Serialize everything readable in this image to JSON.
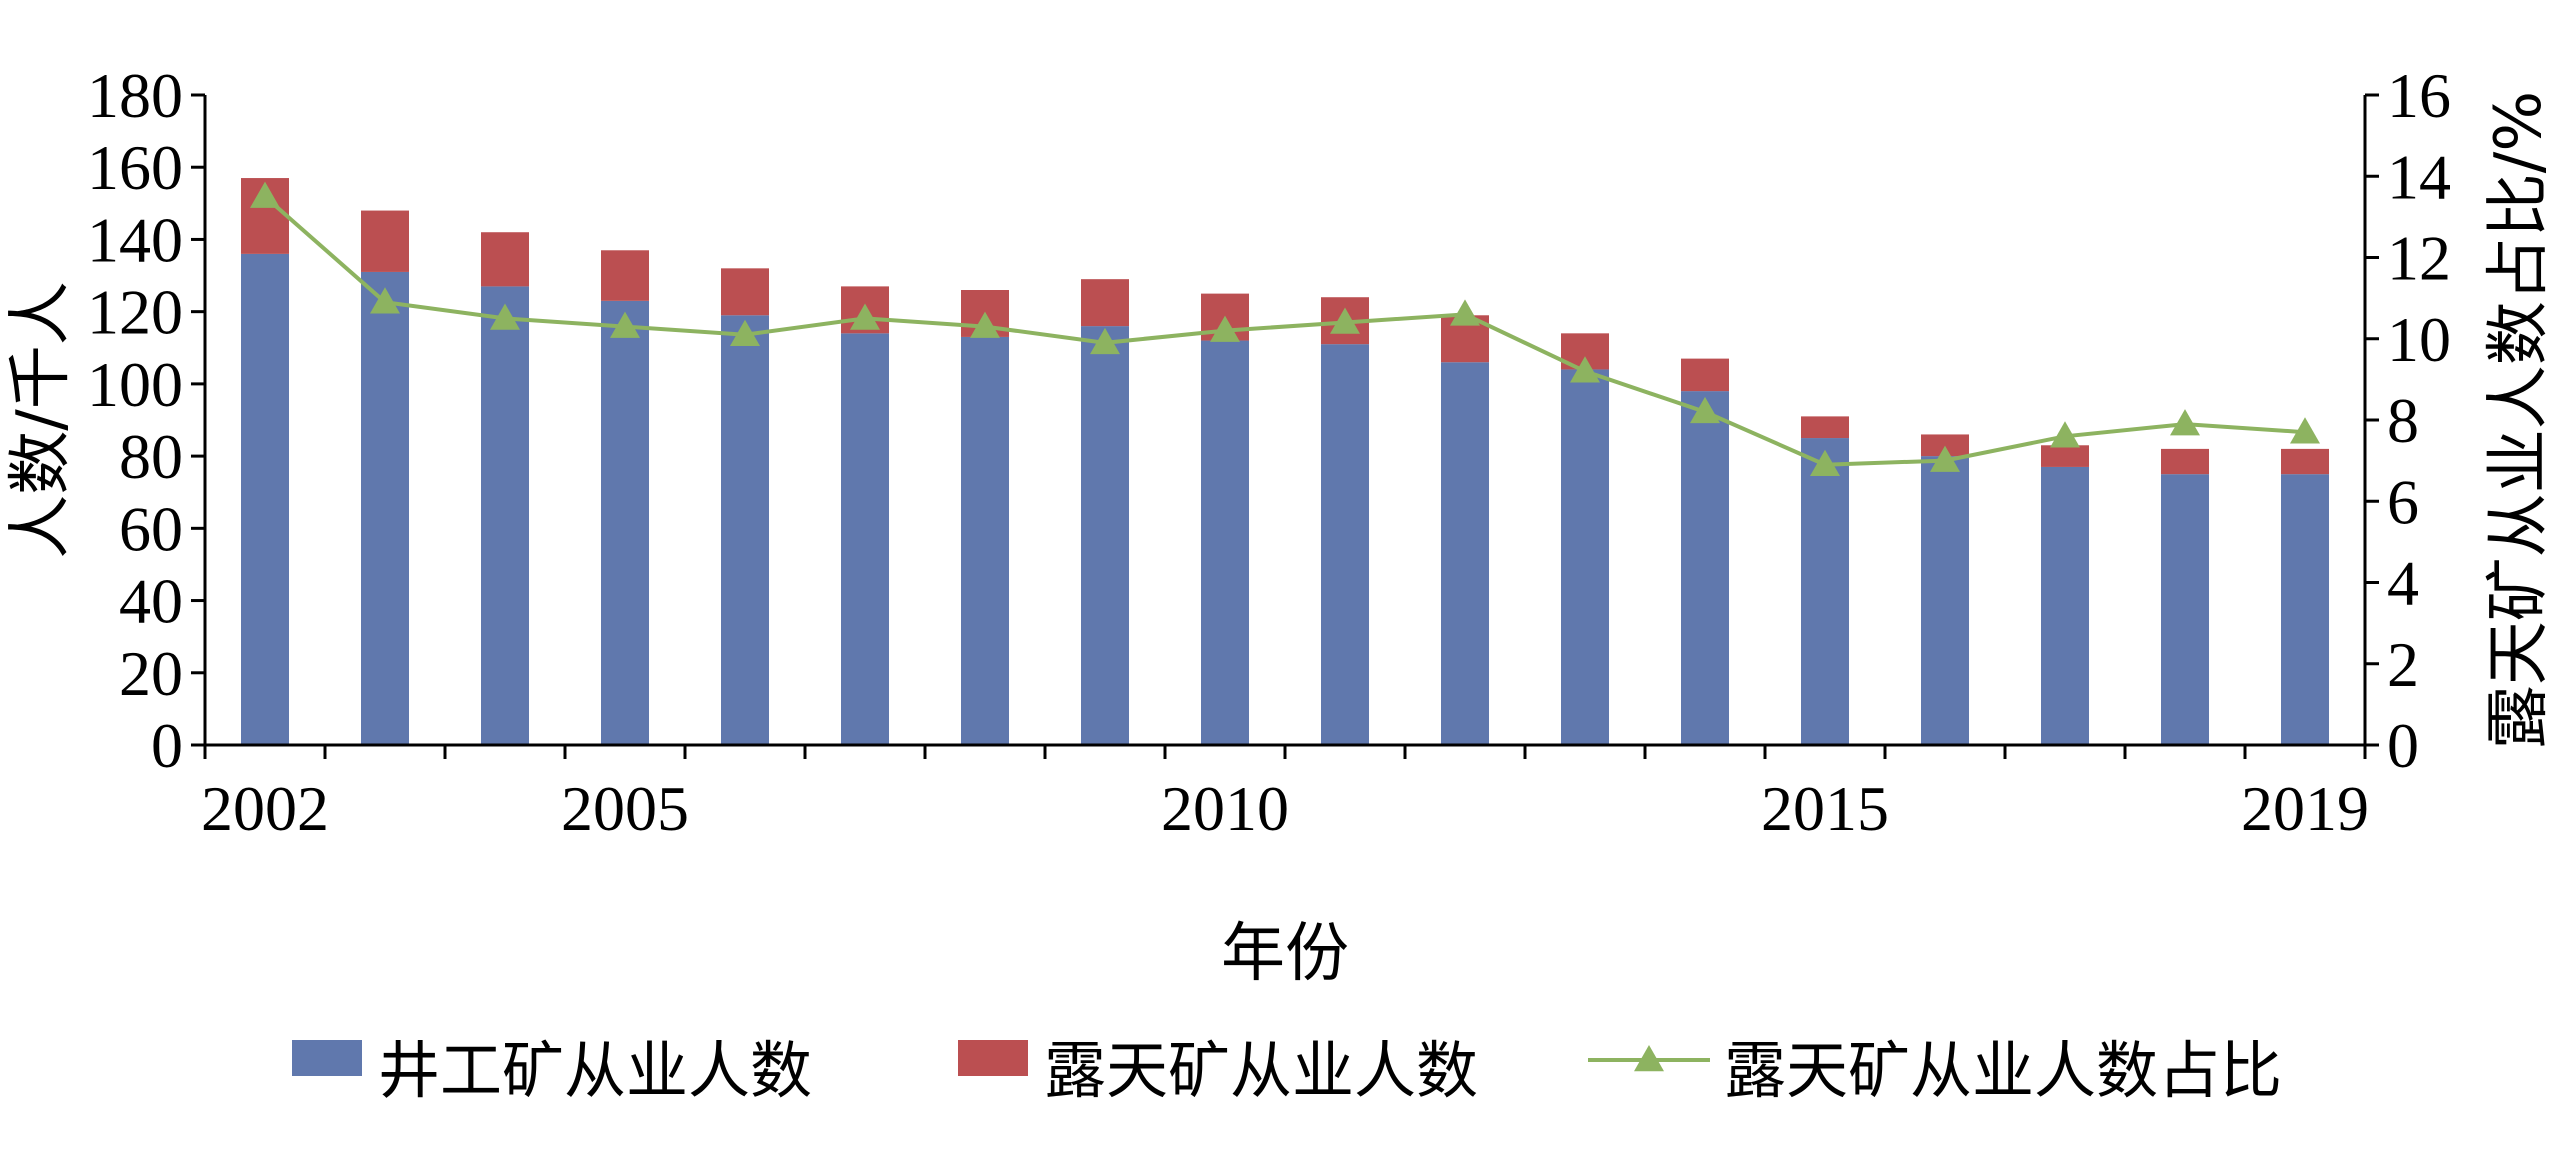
{
  "chart_data": {
    "type": "bar",
    "stacked": true,
    "x": [
      2002,
      2003,
      2004,
      2005,
      2006,
      2007,
      2008,
      2009,
      2010,
      2011,
      2012,
      2013,
      2014,
      2015,
      2016,
      2017,
      2018,
      2019
    ],
    "x_tick_labels": [
      "2002",
      "2005",
      "2010",
      "2015",
      "2019"
    ],
    "xlabel": "年份",
    "ylabel_left": "人数/千人",
    "ylabel_right": "露天矿从业人数占比/%",
    "ylim_left": [
      0,
      180
    ],
    "ylim_right": [
      0,
      16
    ],
    "y_ticks_left": [
      "0",
      "20",
      "40",
      "60",
      "80",
      "100",
      "120",
      "140",
      "160",
      "180"
    ],
    "y_ticks_right": [
      "0",
      "2",
      "4",
      "6",
      "8",
      "10",
      "12",
      "14",
      "16"
    ],
    "series": [
      {
        "name": "井工矿从业人数",
        "kind": "bar",
        "axis": "left",
        "color": "#6078ad",
        "values": [
          136,
          131,
          127,
          123,
          119,
          114,
          113,
          116,
          112,
          111,
          106,
          104,
          98,
          85,
          80,
          77,
          75,
          75
        ]
      },
      {
        "name": "露天矿从业人数",
        "kind": "bar",
        "axis": "left",
        "color": "#bb4f51",
        "values": [
          21,
          17,
          15,
          14,
          13,
          13,
          13,
          13,
          13,
          13,
          13,
          10,
          9,
          6,
          6,
          6,
          7,
          7
        ]
      },
      {
        "name": "露天矿从业人数占比",
        "kind": "line",
        "axis": "right",
        "color": "#8db360",
        "marker": "triangle",
        "values": [
          13.5,
          10.9,
          10.5,
          10.3,
          10.1,
          10.5,
          10.3,
          9.9,
          10.2,
          10.4,
          10.6,
          9.2,
          8.2,
          6.9,
          7.0,
          7.6,
          7.9,
          7.7
        ]
      }
    ],
    "legend_position": "bottom",
    "grid": false
  }
}
